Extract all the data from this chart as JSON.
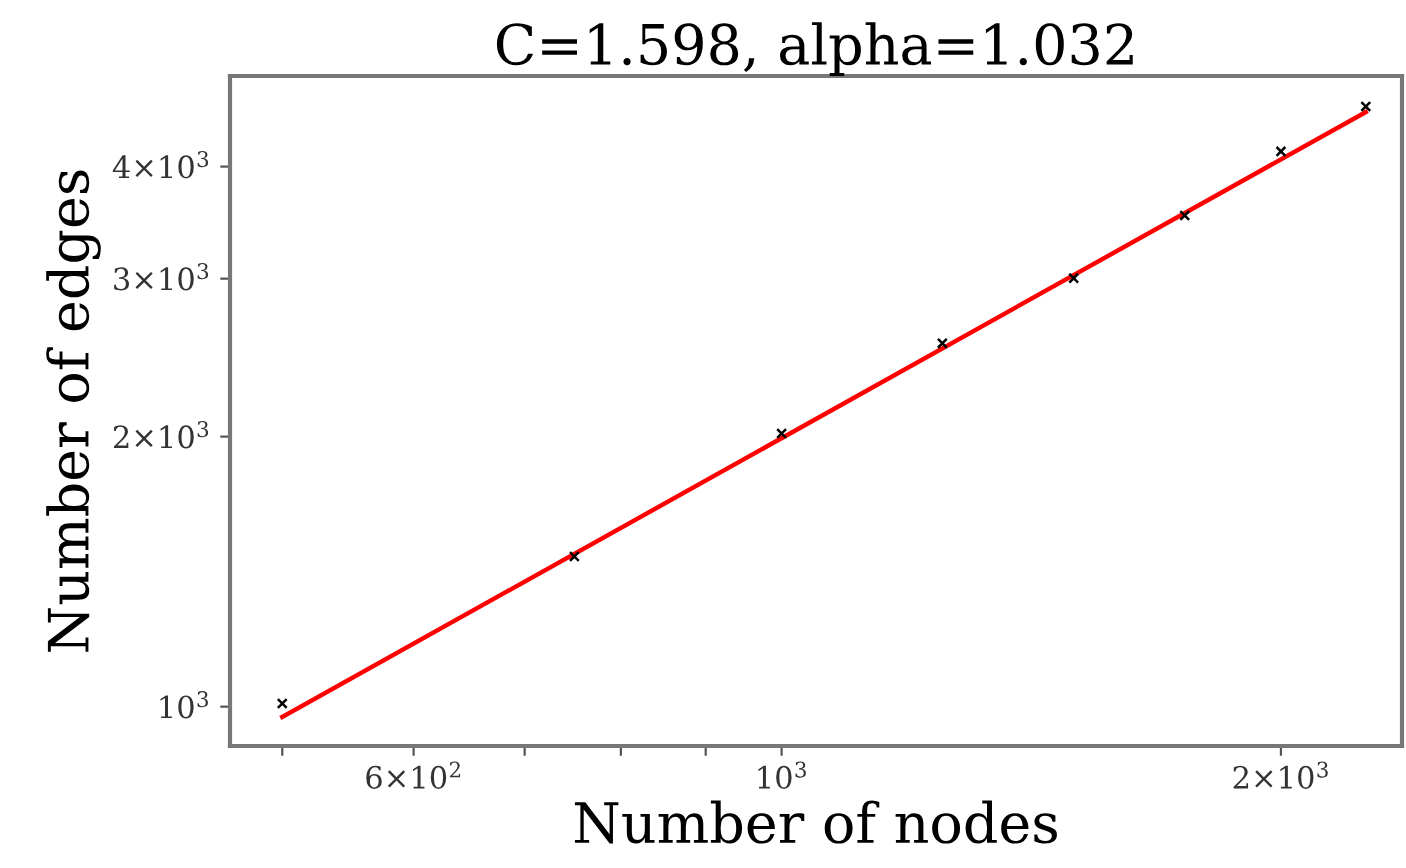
{
  "chart_data": {
    "type": "scatter",
    "title": "C=1.598, alpha=1.032",
    "xlabel": "Number of nodes",
    "ylabel": "Number of edges",
    "log": "xy",
    "grid": false,
    "x": [
      500,
      750,
      1000,
      1250,
      1500,
      1750,
      2000,
      2250
    ],
    "series": [
      {
        "color": "#000000",
        "marker": "cross",
        "values": [
          1008,
          1470,
          2016,
          2541,
          3004,
          3528,
          4159,
          4667
        ]
      },
      {
        "type": "line",
        "color": "#ff0000",
        "marker": "none",
        "line_style": "solid",
        "x": [
          500,
          2250
        ],
        "values": [
          974,
          4601
        ]
      }
    ],
    "xlim": [
      465,
      2366
    ],
    "ylim": [
      904,
      5047
    ],
    "xticks": [
      {
        "value": 500,
        "label": null
      },
      {
        "value": 600,
        "label": "6×10$^{2}$"
      },
      {
        "value": 700,
        "label": null
      },
      {
        "value": 800,
        "label": null
      },
      {
        "value": 900,
        "label": null
      },
      {
        "value": 1000,
        "label": "10$^{3}$"
      },
      {
        "value": 2000,
        "label": "2×10$^{3}$"
      }
    ],
    "yticks": [
      {
        "value": 1000,
        "label": "10$^{3}$"
      },
      {
        "value": 2000,
        "label": "2×10$^{3}$"
      },
      {
        "value": 3000,
        "label": "3×10$^{3}$"
      },
      {
        "value": 4000,
        "label": "4×10$^{3}$"
      }
    ]
  }
}
